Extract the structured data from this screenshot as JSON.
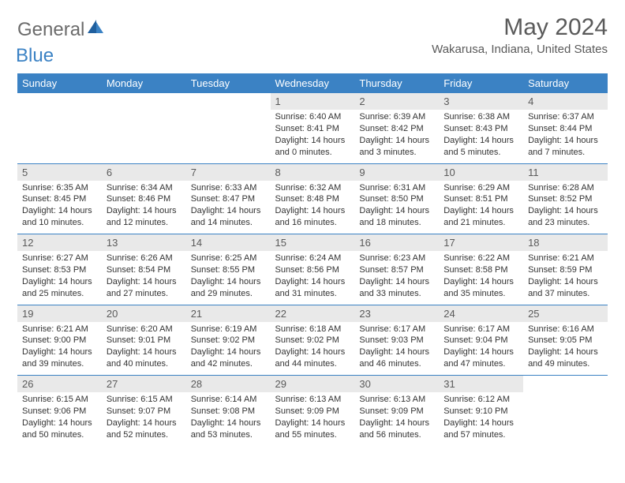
{
  "logo": {
    "text1": "General",
    "text2": "Blue"
  },
  "title": "May 2024",
  "location": "Wakarusa, Indiana, United States",
  "header_bg": "#3b82c4",
  "daynum_bg": "#e9e9e9",
  "day_names": [
    "Sunday",
    "Monday",
    "Tuesday",
    "Wednesday",
    "Thursday",
    "Friday",
    "Saturday"
  ],
  "weeks": [
    [
      null,
      null,
      null,
      {
        "n": "1",
        "sunrise": "6:40 AM",
        "sunset": "8:41 PM",
        "daylight": "14 hours and 0 minutes."
      },
      {
        "n": "2",
        "sunrise": "6:39 AM",
        "sunset": "8:42 PM",
        "daylight": "14 hours and 3 minutes."
      },
      {
        "n": "3",
        "sunrise": "6:38 AM",
        "sunset": "8:43 PM",
        "daylight": "14 hours and 5 minutes."
      },
      {
        "n": "4",
        "sunrise": "6:37 AM",
        "sunset": "8:44 PM",
        "daylight": "14 hours and 7 minutes."
      }
    ],
    [
      {
        "n": "5",
        "sunrise": "6:35 AM",
        "sunset": "8:45 PM",
        "daylight": "14 hours and 10 minutes."
      },
      {
        "n": "6",
        "sunrise": "6:34 AM",
        "sunset": "8:46 PM",
        "daylight": "14 hours and 12 minutes."
      },
      {
        "n": "7",
        "sunrise": "6:33 AM",
        "sunset": "8:47 PM",
        "daylight": "14 hours and 14 minutes."
      },
      {
        "n": "8",
        "sunrise": "6:32 AM",
        "sunset": "8:48 PM",
        "daylight": "14 hours and 16 minutes."
      },
      {
        "n": "9",
        "sunrise": "6:31 AM",
        "sunset": "8:50 PM",
        "daylight": "14 hours and 18 minutes."
      },
      {
        "n": "10",
        "sunrise": "6:29 AM",
        "sunset": "8:51 PM",
        "daylight": "14 hours and 21 minutes."
      },
      {
        "n": "11",
        "sunrise": "6:28 AM",
        "sunset": "8:52 PM",
        "daylight": "14 hours and 23 minutes."
      }
    ],
    [
      {
        "n": "12",
        "sunrise": "6:27 AM",
        "sunset": "8:53 PM",
        "daylight": "14 hours and 25 minutes."
      },
      {
        "n": "13",
        "sunrise": "6:26 AM",
        "sunset": "8:54 PM",
        "daylight": "14 hours and 27 minutes."
      },
      {
        "n": "14",
        "sunrise": "6:25 AM",
        "sunset": "8:55 PM",
        "daylight": "14 hours and 29 minutes."
      },
      {
        "n": "15",
        "sunrise": "6:24 AM",
        "sunset": "8:56 PM",
        "daylight": "14 hours and 31 minutes."
      },
      {
        "n": "16",
        "sunrise": "6:23 AM",
        "sunset": "8:57 PM",
        "daylight": "14 hours and 33 minutes."
      },
      {
        "n": "17",
        "sunrise": "6:22 AM",
        "sunset": "8:58 PM",
        "daylight": "14 hours and 35 minutes."
      },
      {
        "n": "18",
        "sunrise": "6:21 AM",
        "sunset": "8:59 PM",
        "daylight": "14 hours and 37 minutes."
      }
    ],
    [
      {
        "n": "19",
        "sunrise": "6:21 AM",
        "sunset": "9:00 PM",
        "daylight": "14 hours and 39 minutes."
      },
      {
        "n": "20",
        "sunrise": "6:20 AM",
        "sunset": "9:01 PM",
        "daylight": "14 hours and 40 minutes."
      },
      {
        "n": "21",
        "sunrise": "6:19 AM",
        "sunset": "9:02 PM",
        "daylight": "14 hours and 42 minutes."
      },
      {
        "n": "22",
        "sunrise": "6:18 AM",
        "sunset": "9:02 PM",
        "daylight": "14 hours and 44 minutes."
      },
      {
        "n": "23",
        "sunrise": "6:17 AM",
        "sunset": "9:03 PM",
        "daylight": "14 hours and 46 minutes."
      },
      {
        "n": "24",
        "sunrise": "6:17 AM",
        "sunset": "9:04 PM",
        "daylight": "14 hours and 47 minutes."
      },
      {
        "n": "25",
        "sunrise": "6:16 AM",
        "sunset": "9:05 PM",
        "daylight": "14 hours and 49 minutes."
      }
    ],
    [
      {
        "n": "26",
        "sunrise": "6:15 AM",
        "sunset": "9:06 PM",
        "daylight": "14 hours and 50 minutes."
      },
      {
        "n": "27",
        "sunrise": "6:15 AM",
        "sunset": "9:07 PM",
        "daylight": "14 hours and 52 minutes."
      },
      {
        "n": "28",
        "sunrise": "6:14 AM",
        "sunset": "9:08 PM",
        "daylight": "14 hours and 53 minutes."
      },
      {
        "n": "29",
        "sunrise": "6:13 AM",
        "sunset": "9:09 PM",
        "daylight": "14 hours and 55 minutes."
      },
      {
        "n": "30",
        "sunrise": "6:13 AM",
        "sunset": "9:09 PM",
        "daylight": "14 hours and 56 minutes."
      },
      {
        "n": "31",
        "sunrise": "6:12 AM",
        "sunset": "9:10 PM",
        "daylight": "14 hours and 57 minutes."
      },
      null
    ]
  ],
  "labels": {
    "sunrise": "Sunrise:",
    "sunset": "Sunset:",
    "daylight": "Daylight:"
  }
}
